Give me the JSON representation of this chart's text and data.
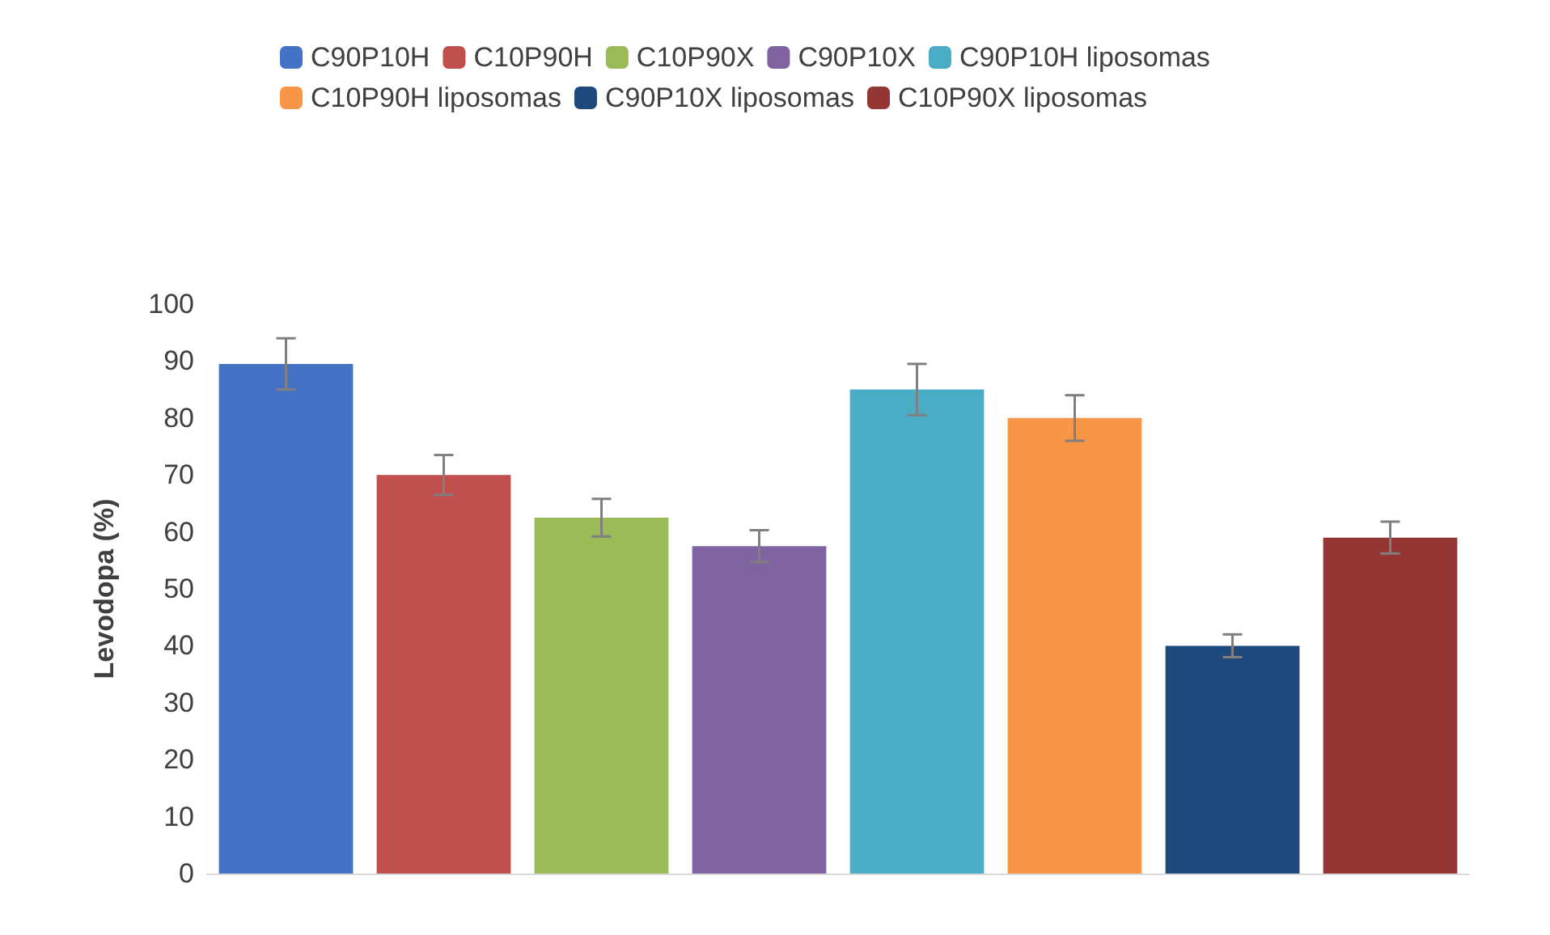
{
  "chart_data": {
    "type": "bar",
    "ylabel": "Levodopa (%)",
    "categories": [
      null,
      null,
      null,
      null,
      null,
      null,
      null,
      null
    ],
    "series": [
      {
        "name": "C90P10H",
        "color": "#4472c4",
        "values": [
          89.5,
          null,
          null,
          null,
          null,
          null,
          null,
          null
        ],
        "errors": [
          4.5,
          null,
          null,
          null,
          null,
          null,
          null,
          null
        ]
      },
      {
        "name": "C10P90H",
        "color": "#c0504d",
        "values": [
          null,
          70,
          null,
          null,
          null,
          null,
          null,
          null
        ],
        "errors": [
          null,
          3.5,
          null,
          null,
          null,
          null,
          null,
          null
        ]
      },
      {
        "name": "C10P90X",
        "color": "#9bbb59",
        "values": [
          null,
          null,
          62.5,
          null,
          null,
          null,
          null,
          null
        ],
        "errors": [
          null,
          null,
          3.3,
          null,
          null,
          null,
          null,
          null
        ]
      },
      {
        "name": "C90P10X",
        "color": "#8064a2",
        "values": [
          null,
          null,
          null,
          57.5,
          null,
          null,
          null,
          null
        ],
        "errors": [
          null,
          null,
          null,
          2.8,
          null,
          null,
          null,
          null
        ]
      },
      {
        "name": "C90P10H liposomas",
        "color": "#4bacc6",
        "values": [
          null,
          null,
          null,
          null,
          85,
          null,
          null,
          null
        ],
        "errors": [
          null,
          null,
          null,
          null,
          4.5,
          null,
          null,
          null
        ]
      },
      {
        "name": "C10P90H liposomas",
        "color": "#f79646",
        "values": [
          null,
          null,
          null,
          null,
          null,
          80,
          null,
          null
        ],
        "errors": [
          null,
          null,
          null,
          null,
          null,
          4,
          null,
          null
        ]
      },
      {
        "name": "C90P10X liposomas",
        "color": "#1f497d",
        "values": [
          null,
          null,
          null,
          null,
          null,
          null,
          40,
          null
        ],
        "errors": [
          null,
          null,
          null,
          null,
          null,
          null,
          2,
          null
        ]
      },
      {
        "name": "C10P90X liposomas",
        "color": "#943634",
        "values": [
          null,
          null,
          null,
          null,
          null,
          null,
          null,
          59
        ],
        "errors": [
          null,
          null,
          null,
          null,
          null,
          null,
          null,
          2.8
        ]
      }
    ],
    "ylim": [
      0,
      100
    ],
    "yticks": [
      0,
      10,
      20,
      30,
      40,
      50,
      60,
      70,
      80,
      90,
      100
    ],
    "grid": false,
    "legend": "top"
  }
}
